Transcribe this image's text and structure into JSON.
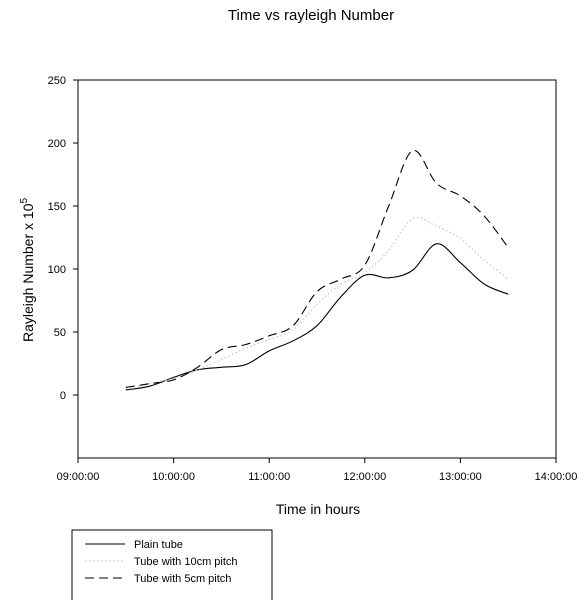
{
  "chart_data": {
    "type": "line",
    "title": "Time vs rayleigh Number",
    "xlabel": "Time in hours",
    "ylabel": "Rayleigh Number x 10",
    "ylabel_superscript": "5",
    "x_ticks": [
      "09:00:00",
      "10:00:00",
      "11:00:00",
      "12:00:00",
      "13:00:00",
      "14:00:00"
    ],
    "y_ticks": [
      "0",
      "50",
      "100",
      "150",
      "200",
      "250"
    ],
    "xlim": [
      "09:00:00",
      "14:00:00"
    ],
    "ylim": [
      -50,
      250
    ],
    "grid": false,
    "legend_position": "bottom-left",
    "x": [
      "09:30:00",
      "09:45:00",
      "10:00:00",
      "10:15:00",
      "10:30:00",
      "10:45:00",
      "11:00:00",
      "11:15:00",
      "11:30:00",
      "11:45:00",
      "12:00:00",
      "12:15:00",
      "12:30:00",
      "12:45:00",
      "13:00:00",
      "13:15:00",
      "13:30:00"
    ],
    "series": [
      {
        "name": "Plain tube",
        "style": "solid",
        "color": "#000000",
        "values": [
          4,
          7,
          14,
          20,
          22,
          24,
          35,
          43,
          55,
          78,
          95,
          93,
          99,
          120,
          105,
          88,
          80
        ]
      },
      {
        "name": "Tube with 10cm pitch",
        "style": "dotted",
        "color": "#c8c8c8",
        "values": [
          5,
          9,
          13,
          20,
          28,
          37,
          44,
          52,
          72,
          88,
          97,
          115,
          140,
          134,
          124,
          107,
          92
        ]
      },
      {
        "name": "Tube with 5cm pitch",
        "style": "dashed",
        "color": "#000000",
        "values": [
          6,
          9,
          12,
          22,
          36,
          40,
          47,
          55,
          82,
          92,
          103,
          150,
          194,
          168,
          158,
          142,
          117
        ]
      }
    ]
  }
}
